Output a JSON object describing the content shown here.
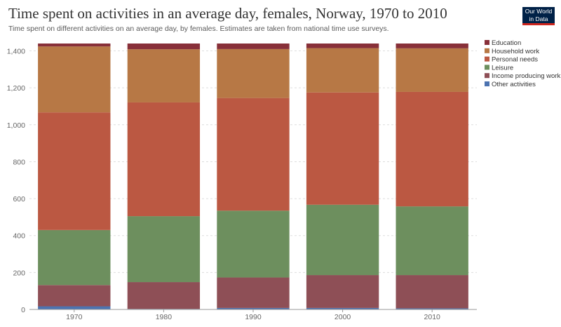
{
  "header": {
    "title": "Time spent on activities in an average day, females, Norway, 1970 to 2010",
    "subtitle": "Time spent on different activities on an average day, by females. Estimates are taken from national time use surveys.",
    "logo_line1": "Our World",
    "logo_line2": "in Data"
  },
  "colors": {
    "Education": "#883039",
    "Household work": "#b77845",
    "Personal needs": "#bb5842",
    "Leisure": "#6d8f5e",
    "Income producing work": "#8e4f56",
    "Other activities": "#4c73b0"
  },
  "chart_data": {
    "type": "bar",
    "stacked": true,
    "title": "Time spent on activities in an average day, females, Norway, 1970 to 2010",
    "categories": [
      "1970",
      "1980",
      "1990",
      "2000",
      "2010"
    ],
    "ylim": [
      0,
      1440
    ],
    "yticks": [
      0,
      200,
      400,
      600,
      800,
      1000,
      1200,
      1400
    ],
    "ytick_labels": [
      "0",
      "200",
      "400",
      "600",
      "800",
      "1,000",
      "1,200",
      "1,400"
    ],
    "grid": true,
    "legend_position": "right",
    "legend_order": [
      "Education",
      "Household work",
      "Personal needs",
      "Leisure",
      "Income producing work",
      "Other activities"
    ],
    "series": [
      {
        "name": "Other activities",
        "values": [
          17,
          3,
          8,
          8,
          6
        ]
      },
      {
        "name": "Income producing work",
        "values": [
          115,
          145,
          165,
          178,
          180
        ]
      },
      {
        "name": "Leisure",
        "values": [
          298,
          357,
          362,
          381,
          372
        ]
      },
      {
        "name": "Personal needs",
        "values": [
          637,
          616,
          610,
          608,
          620
        ]
      },
      {
        "name": "Household work",
        "values": [
          357,
          288,
          265,
          240,
          236
        ]
      },
      {
        "name": "Education",
        "values": [
          16,
          31,
          30,
          25,
          26
        ]
      }
    ]
  }
}
